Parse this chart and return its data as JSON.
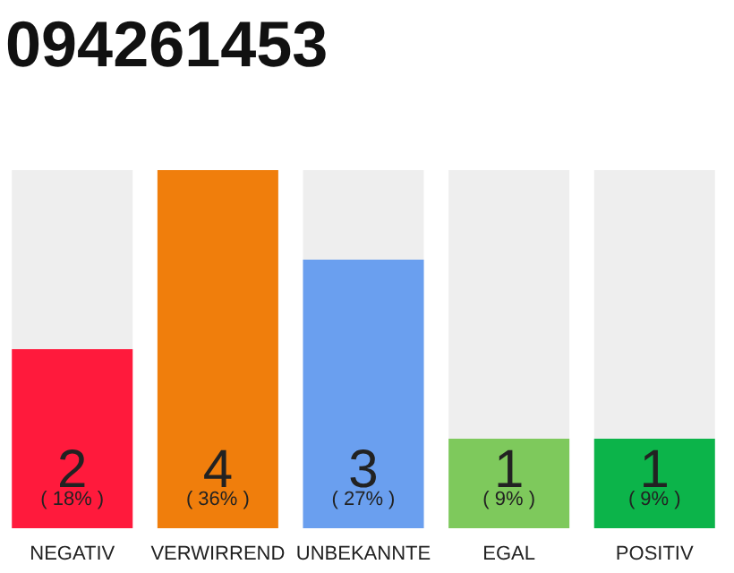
{
  "chart_data": {
    "type": "bar",
    "title": "094261453",
    "categories": [
      "NEGATIV",
      "VERWIRREND",
      "UNBEKANNTE",
      "EGAL",
      "POSITIV"
    ],
    "values": [
      2,
      4,
      3,
      1,
      1
    ],
    "colors": [
      "#ff1a3c",
      "#f07e0c",
      "#6a9fef",
      "#7ec95c",
      "#0cb44a"
    ],
    "tick_labels": "x",
    "data_labels": true,
    "annotations": [
      "( 18% )",
      "( 36% )",
      "( 27% )",
      "( 9% )",
      "( 9% )"
    ]
  }
}
